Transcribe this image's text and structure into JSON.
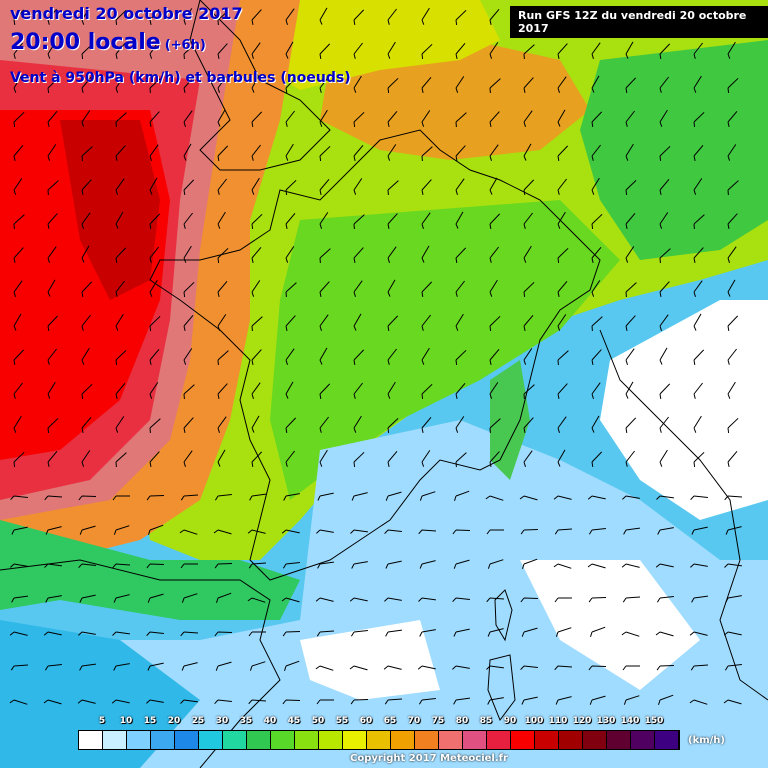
{
  "header": {
    "date": "vendredi 20 octobre 2017",
    "time": "20:00 locale",
    "offset": "(+6h)",
    "parameter": "Vent à 950hPa (km/h) et barbules (noeuds)",
    "run": "Run GFS 12Z du vendredi 20 octobre 2017"
  },
  "legend": {
    "ticks": [
      "5",
      "10",
      "15",
      "20",
      "25",
      "30",
      "35",
      "40",
      "45",
      "50",
      "55",
      "60",
      "65",
      "70",
      "75",
      "80",
      "85",
      "90",
      "100",
      "110",
      "120",
      "130",
      "140",
      "150"
    ],
    "colors": [
      "#ffffff",
      "#c8f0ff",
      "#7ed0ff",
      "#3ca8f0",
      "#1e88e8",
      "#20c8e0",
      "#20d8a0",
      "#30c850",
      "#58d828",
      "#88e010",
      "#b8e800",
      "#e8f000",
      "#e8c000",
      "#f0a000",
      "#f08020",
      "#f07070",
      "#e05080",
      "#e82040",
      "#f80000",
      "#c80000",
      "#a00000",
      "#800010",
      "#600030",
      "#500060",
      "#3c0080"
    ],
    "unit": "(km/h)"
  },
  "footer": {
    "copyright": "Copyright 2017 Meteociel.fr"
  },
  "colors": {
    "title": "#0000c8",
    "coast": "#000000"
  }
}
